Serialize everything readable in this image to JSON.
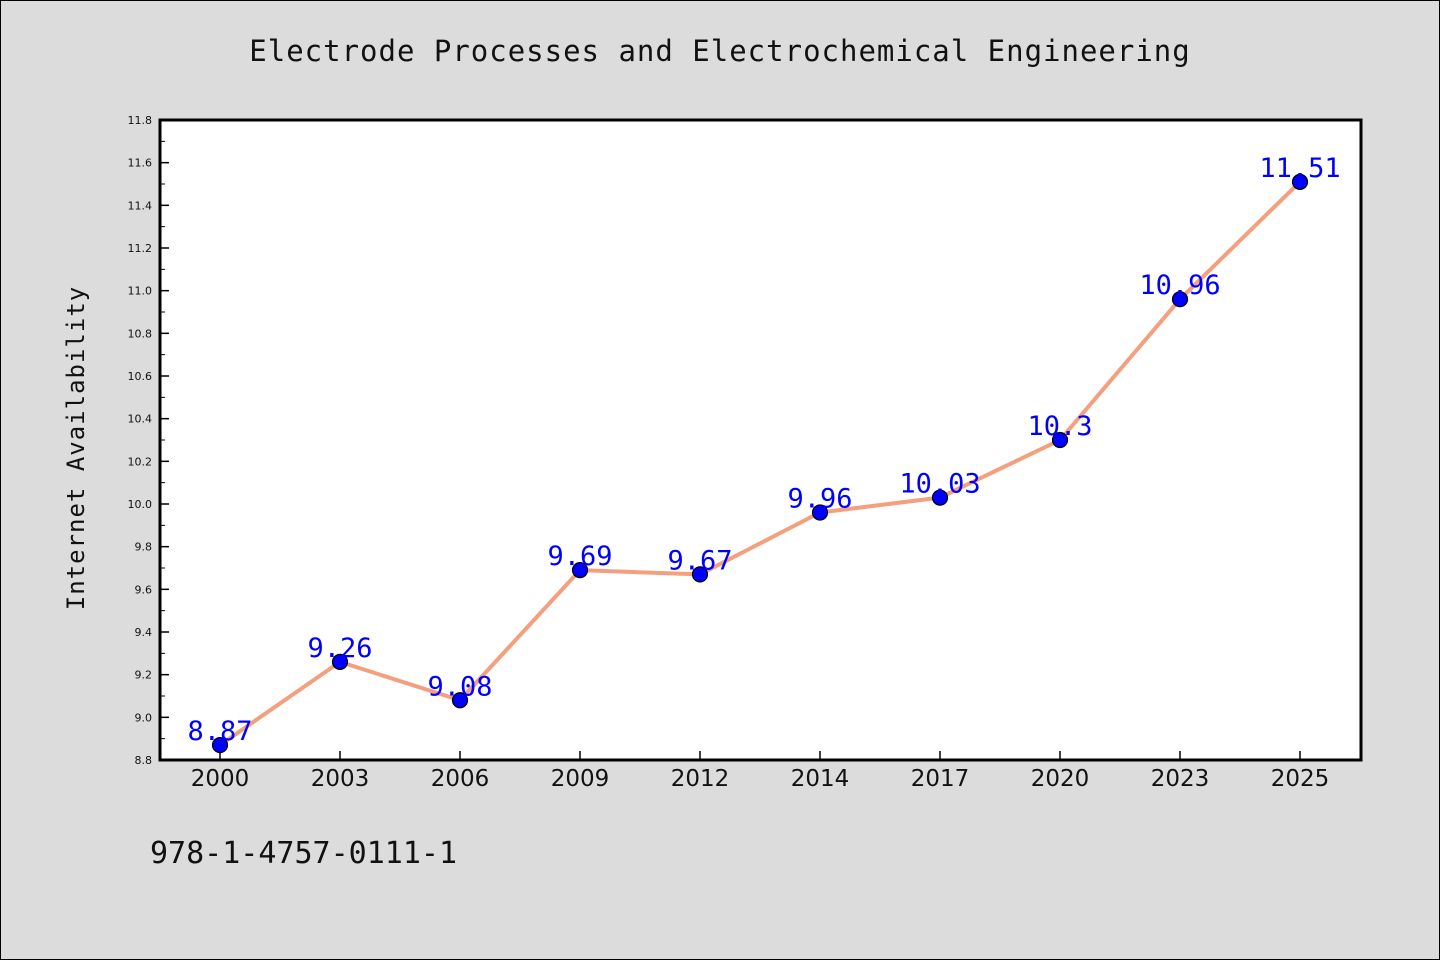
{
  "footer": {
    "id_text": "978-1-4757-0111-1"
  },
  "colors": {
    "line": "#f4a07e",
    "marker": "#0000ff",
    "label": "#0000ff",
    "plot_bg": "#ffffff",
    "page_bg": "#dcdcdc"
  },
  "chart_data": {
    "type": "line",
    "title": "Electrode Processes and Electrochemical Engineering",
    "xlabel": "",
    "ylabel": "Internet Availability",
    "categories": [
      "2000",
      "2003",
      "2006",
      "2009",
      "2012",
      "2014",
      "2017",
      "2020",
      "2023",
      "2025"
    ],
    "values": [
      8.87,
      9.26,
      9.08,
      9.69,
      9.67,
      9.96,
      10.03,
      10.3,
      10.96,
      11.51
    ],
    "data_labels": [
      "8.87",
      "9.26",
      "9.08",
      "9.69",
      "9.67",
      "9.96",
      "10.03",
      "10.3",
      "10.96",
      "11.51"
    ],
    "ylim": [
      8.8,
      11.8
    ],
    "yticks": [
      "8.8",
      "9.0",
      "9.2",
      "9.4",
      "9.6",
      "9.8",
      "10.0",
      "10.2",
      "10.4",
      "10.6",
      "10.8",
      "11.0",
      "11.2",
      "11.4",
      "11.6",
      "11.8"
    ],
    "grid": false,
    "legend": "none"
  }
}
